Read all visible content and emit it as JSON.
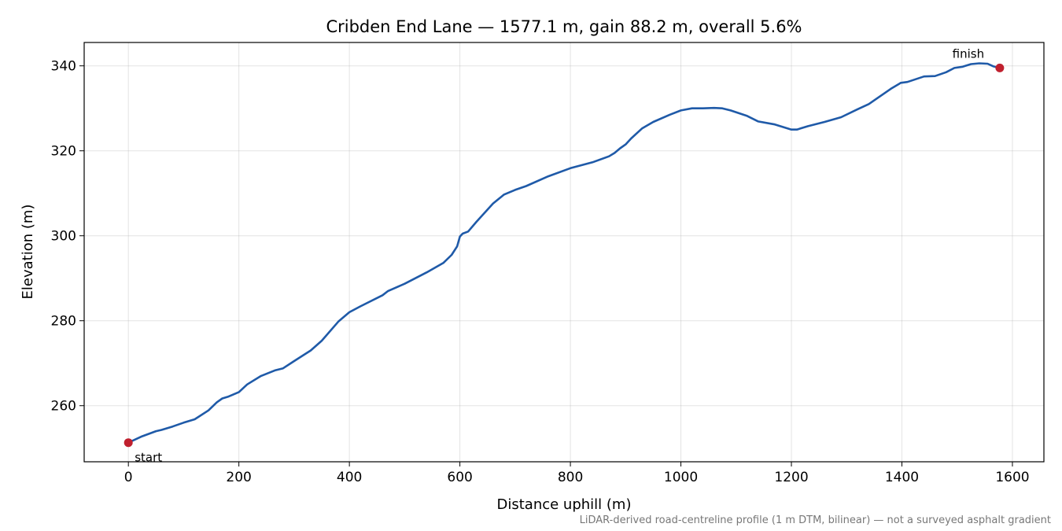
{
  "chart_data": {
    "type": "line",
    "title": "Cribden End Lane — 1577.1 m, gain 88.2 m, overall 5.6%",
    "xlabel": "Distance uphill (m)",
    "ylabel": "Elevation (m)",
    "footnote": "LiDAR-derived road-centreline profile (1 m DTM, bilinear) — not a surveyed asphalt gradient",
    "xlim": [
      -80,
      1657
    ],
    "ylim": [
      246.8,
      345.5
    ],
    "xticks": [
      0,
      200,
      400,
      600,
      800,
      1000,
      1200,
      1400,
      1600
    ],
    "yticks": [
      260,
      280,
      300,
      320,
      340
    ],
    "grid": true,
    "line_color": "#1f5aa8",
    "marker_color": "#c0202e",
    "series": [
      {
        "x": [
          0,
          25,
          50,
          60,
          80,
          100,
          120,
          145,
          160,
          170,
          180,
          200,
          215,
          240,
          265,
          280,
          300,
          330,
          350,
          380,
          400,
          420,
          460,
          470,
          500,
          540,
          570,
          585,
          595,
          600,
          605,
          615,
          630,
          660,
          680,
          700,
          720,
          760,
          800,
          840,
          870,
          880,
          890,
          900,
          910,
          930,
          950,
          980,
          1000,
          1020,
          1040,
          1060,
          1075,
          1090,
          1120,
          1140,
          1170,
          1200,
          1210,
          1230,
          1260,
          1290,
          1320,
          1340,
          1380,
          1398,
          1410,
          1440,
          1460,
          1480,
          1495,
          1510,
          1525,
          1540,
          1555,
          1565,
          1577.1
        ],
        "y": [
          251.3,
          252.8,
          254.0,
          254.3,
          255.1,
          256.0,
          256.8,
          258.9,
          260.8,
          261.7,
          262.1,
          263.2,
          265.0,
          267.0,
          268.3,
          268.8,
          270.5,
          273.0,
          275.3,
          279.8,
          282.0,
          283.4,
          286.0,
          287.0,
          288.7,
          291.4,
          293.6,
          295.5,
          297.5,
          299.8,
          300.5,
          301.0,
          303.3,
          307.6,
          309.7,
          310.8,
          311.7,
          314.0,
          315.9,
          317.3,
          318.7,
          319.5,
          320.6,
          321.5,
          322.9,
          325.3,
          326.8,
          328.5,
          329.5,
          330.0,
          330.0,
          330.1,
          330.0,
          329.5,
          328.2,
          326.9,
          326.2,
          325.0,
          325.0,
          325.8,
          326.8,
          327.9,
          329.8,
          331.0,
          334.6,
          336.0,
          336.2,
          337.5,
          337.6,
          338.5,
          339.5,
          339.8,
          340.4,
          340.6,
          340.5,
          339.9,
          339.5
        ]
      }
    ],
    "annotations": [
      {
        "text": "start",
        "x": 0,
        "y": 251.3
      },
      {
        "text": "finish",
        "x": 1577.1,
        "y": 339.5
      }
    ]
  }
}
